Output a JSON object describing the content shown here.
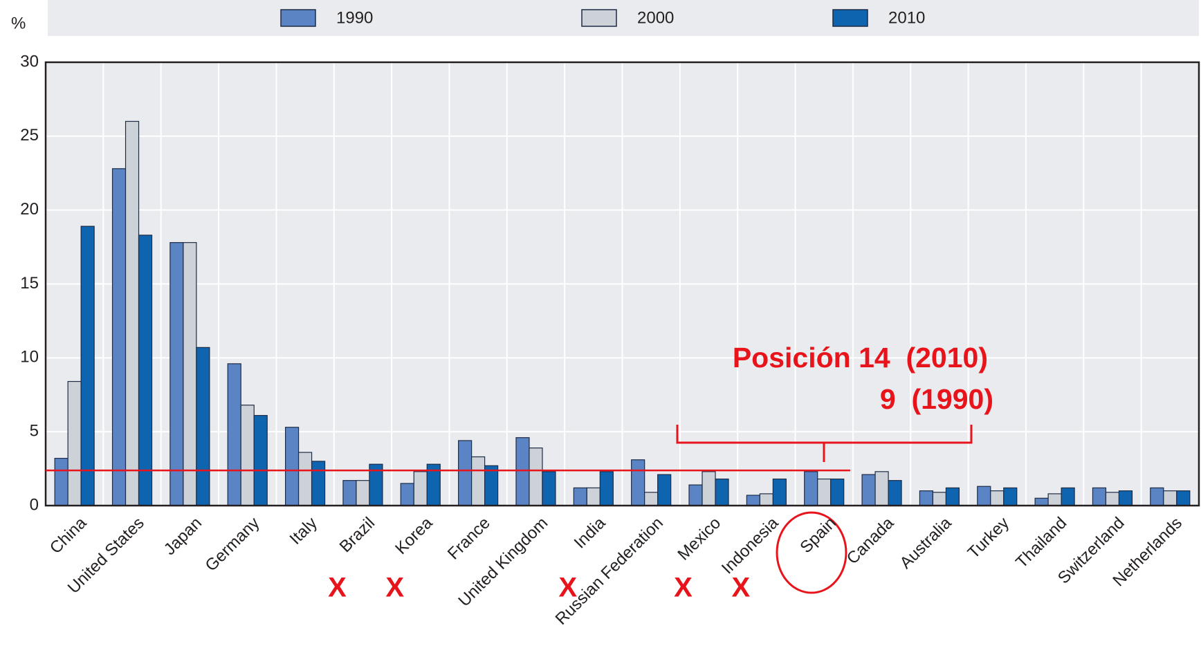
{
  "chart_data": {
    "type": "bar",
    "y_unit": "%",
    "categories": [
      "China",
      "United States",
      "Japan",
      "Germany",
      "Italy",
      "Brazil",
      "Korea",
      "France",
      "United Kingdom",
      "India",
      "Russian Federation",
      "Mexico",
      "Indonesia",
      "Spain",
      "Canada",
      "Australia",
      "Turkey",
      "Thailand",
      "Switzerland",
      "Netherlands"
    ],
    "series": [
      {
        "name": "1990",
        "color": "#5b84c4",
        "values": [
          3.2,
          22.8,
          17.8,
          9.6,
          5.3,
          1.7,
          1.5,
          4.4,
          4.6,
          1.2,
          3.1,
          1.4,
          0.7,
          2.3,
          2.1,
          1.0,
          1.3,
          0.5,
          1.2,
          1.2
        ]
      },
      {
        "name": "2000",
        "color": "#cdd1d8",
        "values": [
          8.4,
          26.0,
          17.8,
          6.8,
          3.6,
          1.7,
          2.3,
          3.3,
          3.9,
          1.2,
          0.9,
          2.3,
          0.8,
          1.8,
          2.3,
          0.9,
          1.0,
          0.8,
          0.9,
          1.0
        ]
      },
      {
        "name": "2010",
        "color": "#0f64b0",
        "values": [
          18.9,
          18.3,
          10.7,
          6.1,
          3.0,
          2.8,
          2.8,
          2.7,
          2.3,
          2.3,
          2.1,
          1.8,
          1.8,
          1.8,
          1.7,
          1.2,
          1.2,
          1.2,
          1.0,
          1.0
        ]
      }
    ],
    "ylim": [
      0,
      30
    ],
    "yticks": [
      0,
      5,
      10,
      15,
      20,
      25,
      30
    ],
    "grid": true,
    "legend": "top",
    "reference_line": 2.38,
    "annotations": [
      "Posición 14  (2010)",
      "9  (1990)"
    ],
    "x_marks": [
      "X",
      "X",
      "X",
      "X",
      "X"
    ]
  }
}
